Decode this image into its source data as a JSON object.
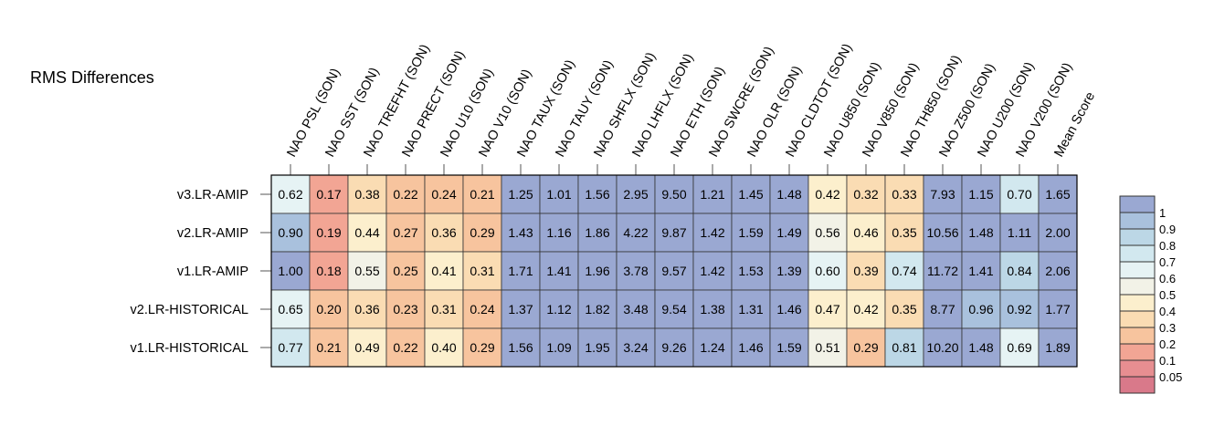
{
  "chart_data": {
    "type": "heatmap",
    "title": "RMS Differences",
    "columns": [
      "NAO PSL (SON)",
      "NAO SST (SON)",
      "NAO TREFHT (SON)",
      "NAO PRECT (SON)",
      "NAO U10 (SON)",
      "NAO V10 (SON)",
      "NAO TAUX (SON)",
      "NAO TAUY (SON)",
      "NAO SHFLX (SON)",
      "NAO LHFLX (SON)",
      "NAO ETH (SON)",
      "NAO SWCRE (SON)",
      "NAO OLR (SON)",
      "NAO CLDTOT (SON)",
      "NAO U850 (SON)",
      "NAO V850 (SON)",
      "NAO TH850 (SON)",
      "NAO Z500 (SON)",
      "NAO U200 (SON)",
      "NAO V200 (SON)",
      "Mean Score"
    ],
    "rows": [
      "v3.LR-AMIP",
      "v2.LR-AMIP",
      "v1.LR-AMIP",
      "v2.LR-HISTORICAL",
      "v1.LR-HISTORICAL"
    ],
    "values": [
      [
        0.62,
        0.17,
        0.38,
        0.22,
        0.24,
        0.21,
        1.25,
        1.01,
        1.56,
        2.95,
        9.5,
        1.21,
        1.45,
        1.48,
        0.42,
        0.32,
        0.33,
        7.93,
        1.15,
        0.7,
        1.65
      ],
      [
        0.9,
        0.19,
        0.44,
        0.27,
        0.36,
        0.29,
        1.43,
        1.16,
        1.86,
        4.22,
        9.87,
        1.42,
        1.59,
        1.49,
        0.56,
        0.46,
        0.35,
        10.56,
        1.48,
        1.11,
        2.0
      ],
      [
        1.0,
        0.18,
        0.55,
        0.25,
        0.41,
        0.31,
        1.71,
        1.41,
        1.96,
        3.78,
        9.57,
        1.42,
        1.53,
        1.39,
        0.6,
        0.39,
        0.74,
        11.72,
        1.41,
        0.84,
        2.06
      ],
      [
        0.65,
        0.2,
        0.36,
        0.23,
        0.31,
        0.24,
        1.37,
        1.12,
        1.82,
        3.48,
        9.54,
        1.38,
        1.31,
        1.46,
        0.47,
        0.42,
        0.35,
        8.77,
        0.96,
        0.92,
        1.77
      ],
      [
        0.77,
        0.21,
        0.49,
        0.22,
        0.4,
        0.29,
        1.56,
        1.09,
        1.95,
        3.24,
        9.26,
        1.24,
        1.46,
        1.59,
        0.51,
        0.29,
        0.81,
        10.2,
        1.48,
        0.69,
        1.89
      ]
    ],
    "value_labels": [
      [
        "0.62",
        "0.17",
        "0.38",
        "0.22",
        "0.24",
        "0.21",
        "1.25",
        "1.01",
        "1.56",
        "2.95",
        "9.50",
        "1.21",
        "1.45",
        "1.48",
        "0.42",
        "0.32",
        "0.33",
        "7.93",
        "1.15",
        "0.70",
        "1.65"
      ],
      [
        "0.90",
        "0.19",
        "0.44",
        "0.27",
        "0.36",
        "0.29",
        "1.43",
        "1.16",
        "1.86",
        "4.22",
        "9.87",
        "1.42",
        "1.59",
        "1.49",
        "0.56",
        "0.46",
        "0.35",
        "10.56",
        "1.48",
        "1.11",
        "2.00"
      ],
      [
        "1.00",
        "0.18",
        "0.55",
        "0.25",
        "0.41",
        "0.31",
        "1.71",
        "1.41",
        "1.96",
        "3.78",
        "9.57",
        "1.42",
        "1.53",
        "1.39",
        "0.60",
        "0.39",
        "0.74",
        "11.72",
        "1.41",
        "0.84",
        "2.06"
      ],
      [
        "0.65",
        "0.20",
        "0.36",
        "0.23",
        "0.31",
        "0.24",
        "1.37",
        "1.12",
        "1.82",
        "3.48",
        "9.54",
        "1.38",
        "1.31",
        "1.46",
        "0.47",
        "0.42",
        "0.35",
        "8.77",
        "0.96",
        "0.92",
        "1.77"
      ],
      [
        "0.77",
        "0.21",
        "0.49",
        "0.22",
        "0.40",
        "0.29",
        "1.56",
        "1.09",
        "1.95",
        "3.24",
        "9.26",
        "1.24",
        "1.46",
        "1.59",
        "0.51",
        "0.29",
        "0.81",
        "10.20",
        "1.48",
        "0.69",
        "1.89"
      ]
    ],
    "legend": {
      "placement": "right",
      "labels": [
        "1",
        "0.9",
        "0.8",
        "0.7",
        "0.6",
        "0.5",
        "0.4",
        "0.3",
        "0.2",
        "0.1",
        "0.05"
      ],
      "boundaries": [
        1.0,
        0.9,
        0.8,
        0.7,
        0.6,
        0.5,
        0.4,
        0.3,
        0.2,
        0.1,
        0.05
      ],
      "colors": [
        "#9aa8d2",
        "#a9c1dd",
        "#bcd7e6",
        "#d2e8ef",
        "#e6f3f4",
        "#f2f2e7",
        "#fcefcd",
        "#fadcb3",
        "#f7c49e",
        "#f2a594",
        "#e78e91",
        "#d9798a"
      ]
    }
  }
}
